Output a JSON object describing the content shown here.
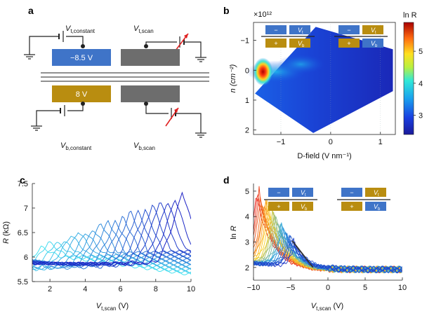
{
  "panels": {
    "a": {
      "label": "a",
      "vt_constant": {
        "main": "V",
        "sub": "t,constant"
      },
      "vt_scan": {
        "main": "V",
        "sub": "t,scan"
      },
      "vb_constant": {
        "main": "V",
        "sub": "b,constant"
      },
      "vb_scan": {
        "main": "V",
        "sub": "b,scan"
      },
      "top_gate_value": "−8.5 V",
      "bottom_gate_value": "8 V",
      "colors": {
        "top_gate": "#3f74c8",
        "bottom_gate": "#b98d10",
        "sample": "#6d6d6d"
      }
    },
    "b": {
      "label": "b"
    },
    "c": {
      "label": "c"
    },
    "d": {
      "label": "d"
    }
  },
  "legend_boxes": {
    "minus": "−",
    "plus": "+",
    "vt": {
      "main": "V",
      "sub": "t"
    },
    "vb": {
      "main": "V",
      "sub": "b"
    }
  },
  "chart_data": [
    {
      "panel": "b",
      "type": "heatmap",
      "xlabel": "D-field (V nm⁻¹)",
      "ylabel": "n (cm⁻²)",
      "y_multiplier": "×10¹²",
      "xlim": [
        -1.55,
        1.3
      ],
      "ylim": [
        2.15,
        -1.6
      ],
      "xticks": [
        -1,
        0,
        1
      ],
      "yticks": [
        -1,
        0,
        1,
        2
      ],
      "colorbar_label": "ln R",
      "colorbar_range": [
        2.4,
        5.9
      ],
      "colorbar_ticks": [
        3,
        4,
        5
      ],
      "data_region_corners": [
        [
          -1.52,
          0.78
        ],
        [
          -0.3,
          -1.45
        ],
        [
          1.25,
          -0.7
        ],
        [
          1.25,
          0.7
        ],
        [
          -0.35,
          2.1
        ]
      ]
    },
    {
      "panel": "c",
      "type": "line",
      "xlabel": "V_t,scan (V)",
      "ylabel": "R (kΩ)",
      "xlim": [
        1,
        10
      ],
      "ylim": [
        5.5,
        7.5
      ],
      "xticks": [
        2,
        4,
        6,
        8,
        10
      ],
      "yticks": [
        5.5,
        6,
        6.5,
        7,
        7.5
      ],
      "series_count": 20,
      "peak_x_first": 1.5,
      "peak_x_last": 9.5,
      "peak_y_first": 6.2,
      "peak_y_last": 7.3,
      "color_range": [
        "#48e3f0",
        "#1a1fc4"
      ]
    },
    {
      "panel": "d",
      "type": "line",
      "xlabel": "V_t,scan (V)",
      "ylabel": "ln R",
      "xlim": [
        -10,
        10
      ],
      "ylim": [
        1.5,
        5.3
      ],
      "xticks": [
        -10,
        -5,
        0,
        5,
        10
      ],
      "yticks": [
        2,
        3,
        4,
        5
      ],
      "series_count": 30,
      "color_range": [
        "#e8201e",
        "#ffd21c",
        "#2ea8e0",
        "#2138c8"
      ],
      "guide_line": [
        [
          -4.8,
          3.05
        ],
        [
          -2.0,
          2.0
        ]
      ]
    }
  ]
}
